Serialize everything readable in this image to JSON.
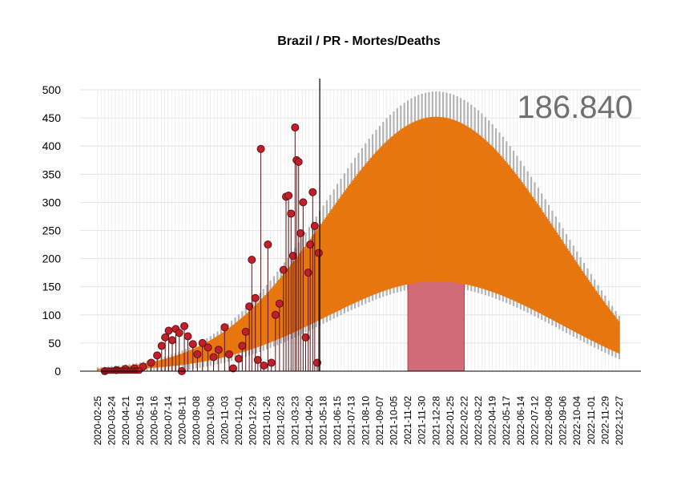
{
  "chart_data": {
    "type": "scatter",
    "title": "Brazil / PR - Mortes/Deaths",
    "total_label": "186.840",
    "ylim": [
      0,
      500
    ],
    "y_ticks": [
      "0",
      "50",
      "100",
      "150",
      "200",
      "250",
      "300",
      "350",
      "400",
      "450",
      "500"
    ],
    "x_tick_labels": [
      "2020-02-25",
      "2020-03-24",
      "2020-04-21",
      "2020-05-19",
      "2020-06-16",
      "2020-07-14",
      "2020-08-11",
      "2020-09-08",
      "2020-10-06",
      "2020-11-03",
      "2020-12-01",
      "2020-12-29",
      "2021-01-26",
      "2021-02-23",
      "2021-03-23",
      "2021-04-20",
      "2021-05-18",
      "2021-06-15",
      "2021-07-13",
      "2021-08-10",
      "2021-09-07",
      "2021-10-05",
      "2021-11-02",
      "2021-11-30",
      "2021-12-28",
      "2022-01-25",
      "2022-02-22",
      "2022-03-22",
      "2022-04-19",
      "2022-05-17",
      "2022-06-14",
      "2022-07-12",
      "2022-08-09",
      "2022-09-06",
      "2022-10-04",
      "2022-11-01",
      "2022-11-29",
      "2022-12-27"
    ],
    "x_start": "2020-02-25",
    "x_end": "2022-12-27",
    "today": "2021-05-11",
    "grid": true,
    "peak_window": {
      "start": "2021-11-02",
      "end": "2022-02-22",
      "value": 165
    },
    "model": {
      "peak_date": "2021-12-28",
      "peak_value": 452,
      "end_value": 88,
      "upper_ci_peak": 495,
      "lower_ci_peak": 168
    },
    "observed_points": [
      [
        "2020-03-10",
        0
      ],
      [
        "2020-04-02",
        2
      ],
      [
        "2020-04-20",
        4
      ],
      [
        "2020-05-08",
        5
      ],
      [
        "2020-05-25",
        8
      ],
      [
        "2020-06-10",
        15
      ],
      [
        "2020-06-22",
        28
      ],
      [
        "2020-07-01",
        45
      ],
      [
        "2020-07-08",
        60
      ],
      [
        "2020-07-15",
        72
      ],
      [
        "2020-07-22",
        55
      ],
      [
        "2020-07-29",
        75
      ],
      [
        "2020-08-05",
        68
      ],
      [
        "2020-08-10",
        0
      ],
      [
        "2020-08-15",
        80
      ],
      [
        "2020-08-22",
        62
      ],
      [
        "2020-09-01",
        48
      ],
      [
        "2020-09-10",
        30
      ],
      [
        "2020-09-20",
        50
      ],
      [
        "2020-10-01",
        42
      ],
      [
        "2020-10-12",
        25
      ],
      [
        "2020-10-22",
        38
      ],
      [
        "2020-11-03",
        78
      ],
      [
        "2020-11-12",
        30
      ],
      [
        "2020-11-20",
        5
      ],
      [
        "2020-12-01",
        22
      ],
      [
        "2020-12-08",
        45
      ],
      [
        "2020-12-15",
        70
      ],
      [
        "2020-12-22",
        115
      ],
      [
        "2020-12-27",
        198
      ],
      [
        "2021-01-03",
        130
      ],
      [
        "2021-01-08",
        20
      ],
      [
        "2021-01-14",
        395
      ],
      [
        "2021-01-20",
        10
      ],
      [
        "2021-01-28",
        225
      ],
      [
        "2021-02-04",
        15
      ],
      [
        "2021-02-12",
        100
      ],
      [
        "2021-02-20",
        120
      ],
      [
        "2021-02-28",
        180
      ],
      [
        "2021-03-05",
        310
      ],
      [
        "2021-03-10",
        312
      ],
      [
        "2021-03-15",
        280
      ],
      [
        "2021-03-19",
        205
      ],
      [
        "2021-03-23",
        433
      ],
      [
        "2021-03-26",
        375
      ],
      [
        "2021-03-30",
        372
      ],
      [
        "2021-04-03",
        245
      ],
      [
        "2021-04-08",
        300
      ],
      [
        "2021-04-13",
        60
      ],
      [
        "2021-04-18",
        175
      ],
      [
        "2021-04-22",
        225
      ],
      [
        "2021-04-27",
        318
      ],
      [
        "2021-05-01",
        258
      ],
      [
        "2021-05-06",
        15
      ],
      [
        "2021-05-09",
        210
      ]
    ]
  }
}
